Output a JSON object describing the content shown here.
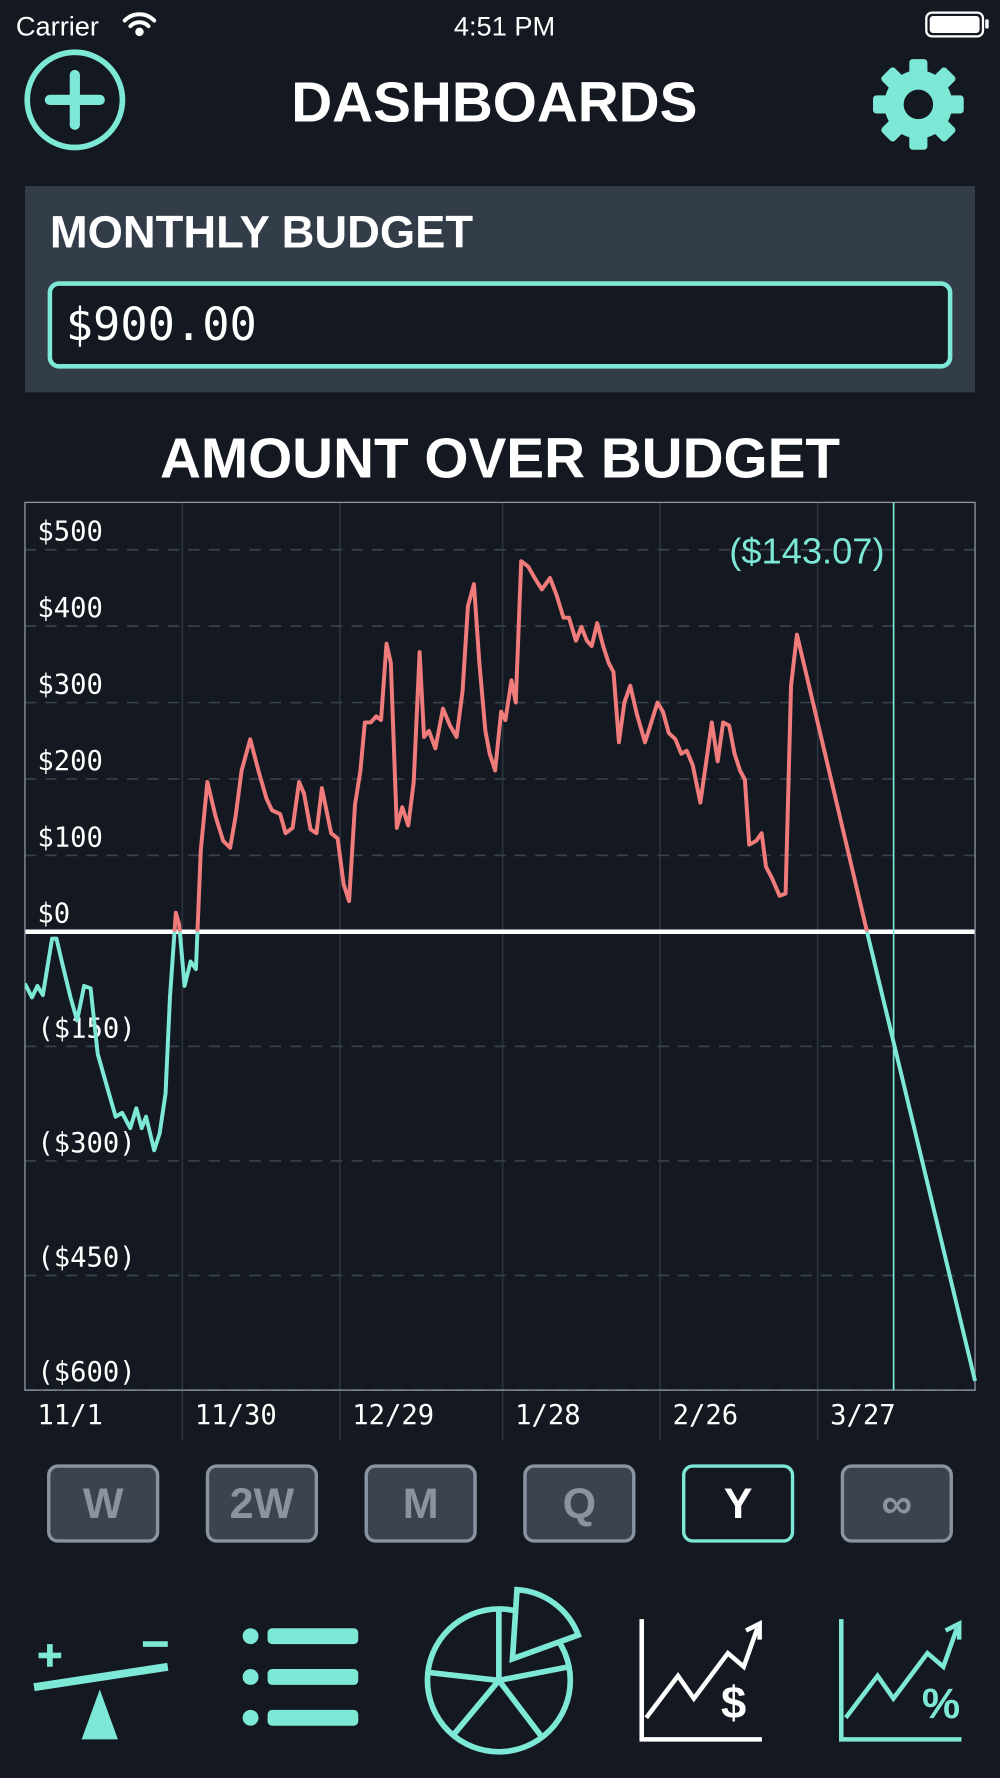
{
  "status_bar": {
    "carrier": "Carrier",
    "time": "4:51 PM"
  },
  "header": {
    "title": "DASHBOARDS"
  },
  "budget": {
    "label": "MONTHLY BUDGET",
    "value": "$900.00"
  },
  "chart_data": {
    "type": "line",
    "title": "AMOUNT OVER BUDGET",
    "x": [
      0,
      1.3,
      2.3,
      3.3,
      5,
      5.8,
      6.9,
      8.4,
      9.6,
      10.9,
      12.1,
      13.4,
      15.2,
      16.7,
      17.9,
      19.4,
      20.5,
      21.5,
      22.3,
      23.8,
      24.8,
      25.9,
      26.7,
      27.8,
      28.4,
      29.4,
      30.5,
      31.5,
      32.4,
      33.6,
      35.1,
      36.5,
      37.8,
      38.8,
      39.9,
      41.5,
      43,
      44.5,
      45.5,
      47,
      48,
      49.3,
      50.5,
      51.4,
      52.6,
      53.7,
      54.7,
      56.4,
      57.6,
      58.7,
      59.7,
      60.8,
      61.8,
      62.6,
      63.7,
      64.7,
      65.6,
      66.6,
      67.4,
      68.5,
      69.5,
      70.6,
      71.6,
      72.7,
      73.5,
      74.4,
      75.6,
      77,
      78.3,
      79.5,
      80.6,
      81.6,
      82.7,
      83.7,
      84.8,
      85.6,
      86.6,
      87.7,
      88.5,
      89.6,
      90.4,
      91.4,
      92.7,
      93.9,
      95.2,
      96.7,
      97.9,
      99.2,
      100.2,
      101.5,
      102.5,
      103.5,
      104.4,
      105.4,
      106.5,
      107.5,
      108.4,
      109.4,
      110.4,
      111.5,
      112.7,
      114.2,
      115.2,
      116.5,
      117.5,
      118.6,
      119.8,
      120.9,
      121.9,
      123,
      124.4,
      125.7,
      126.5,
      127.6,
      128.6,
      129.7,
      130.7,
      131.7,
      132.6,
      133.4,
      134.7,
      135.7,
      136.5,
      137.6,
      139,
      140.1,
      141.1,
      142.2,
      155.1,
      175
    ],
    "values": [
      -68,
      -86,
      -71,
      -83,
      -9,
      -9,
      -42,
      -86,
      -116,
      -71,
      -74,
      -160,
      -205,
      -242,
      -237,
      -257,
      -231,
      -257,
      -242,
      -286,
      -264,
      -212,
      -86,
      25,
      10,
      -71,
      -39,
      -49,
      107,
      196,
      151,
      119,
      110,
      151,
      211,
      252,
      211,
      174,
      159,
      154,
      129,
      136,
      196,
      181,
      134,
      129,
      188,
      129,
      122,
      62,
      40,
      166,
      211,
      274,
      274,
      282,
      277,
      377,
      352,
      136,
      163,
      139,
      196,
      366,
      255,
      263,
      240,
      292,
      270,
      255,
      315,
      426,
      455,
      352,
      263,
      233,
      211,
      288,
      277,
      329,
      300,
      485,
      478,
      463,
      448,
      463,
      441,
      411,
      411,
      381,
      399,
      381,
      374,
      404,
      374,
      352,
      340,
      248,
      300,
      322,
      285,
      248,
      270,
      300,
      288,
      260,
      252,
      233,
      237,
      218,
      169,
      233,
      274,
      223,
      274,
      270,
      233,
      211,
      199,
      114,
      119,
      129,
      85,
      70,
      47,
      50,
      322,
      389,
      0,
      -588
    ],
    "color_above": "#f07b7b",
    "color_below": "#7ee8d6",
    "xlim": [
      0,
      175
    ],
    "xticks": [
      {
        "value": 0,
        "label": "11/1"
      },
      {
        "value": 29,
        "label": "11/30"
      },
      {
        "value": 58,
        "label": "12/29"
      },
      {
        "value": 88,
        "label": "1/28"
      },
      {
        "value": 117,
        "label": "2/26"
      },
      {
        "value": 146,
        "label": "3/27"
      }
    ],
    "ylim": [
      -600,
      562
    ],
    "yticks": [
      {
        "value": 500,
        "label": "$500"
      },
      {
        "value": 400,
        "label": "$400"
      },
      {
        "value": 300,
        "label": "$300"
      },
      {
        "value": 200,
        "label": "$200"
      },
      {
        "value": 100,
        "label": "$100"
      },
      {
        "value": 0,
        "label": "$0"
      },
      {
        "value": -150,
        "label": "($150)"
      },
      {
        "value": -300,
        "label": "($300)"
      },
      {
        "value": -450,
        "label": "($450)"
      },
      {
        "value": -600,
        "label": "($600)"
      }
    ],
    "grid": true,
    "annotation": {
      "x": 160,
      "value": -143.07,
      "label": "($143.07)"
    }
  },
  "range_buttons": {
    "options": [
      "W",
      "2W",
      "M",
      "Q",
      "Y",
      "∞"
    ],
    "selected": 4
  }
}
